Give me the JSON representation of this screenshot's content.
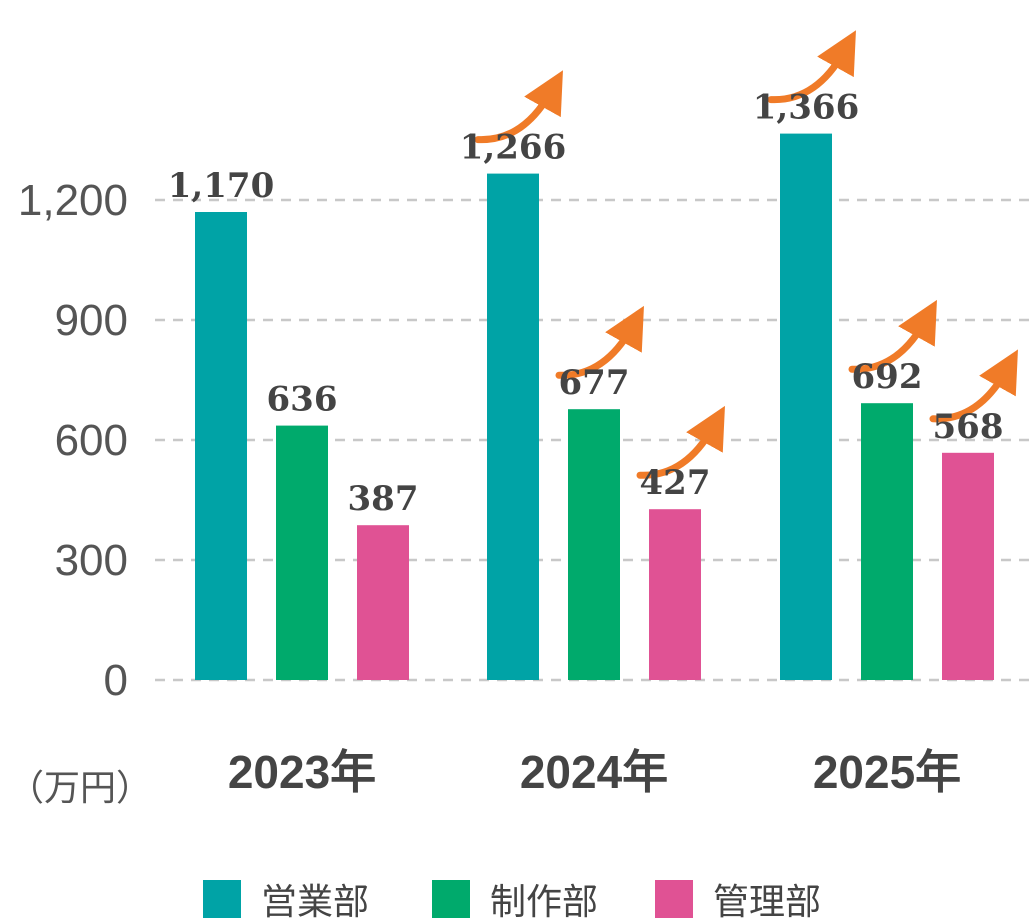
{
  "chart_data": {
    "type": "bar",
    "categories": [
      "2023年",
      "2024年",
      "2025年"
    ],
    "series": [
      {
        "name": "営業部",
        "color": "#00a3a6",
        "values": [
          1170,
          1266,
          1366
        ],
        "labels": [
          "1,170",
          "1,266",
          "1,366"
        ]
      },
      {
        "name": "制作部",
        "color": "#00aa6c",
        "values": [
          636,
          677,
          692
        ],
        "labels": [
          "636",
          "677",
          "692"
        ]
      },
      {
        "name": "管理部",
        "color": "#e05294",
        "values": [
          387,
          427,
          568
        ],
        "labels": [
          "387",
          "427",
          "568"
        ]
      }
    ],
    "yticks": [
      0,
      300,
      600,
      900,
      1200
    ],
    "ytick_labels": [
      "0",
      "300",
      "600",
      "900",
      "1,200"
    ],
    "ylim": [
      0,
      1400
    ],
    "unit_label": "（万円）",
    "grid": true,
    "gridline_style": "dashed",
    "legend_position": "bottom",
    "arrow_color": "#f07b28",
    "increase_arrows": true
  }
}
